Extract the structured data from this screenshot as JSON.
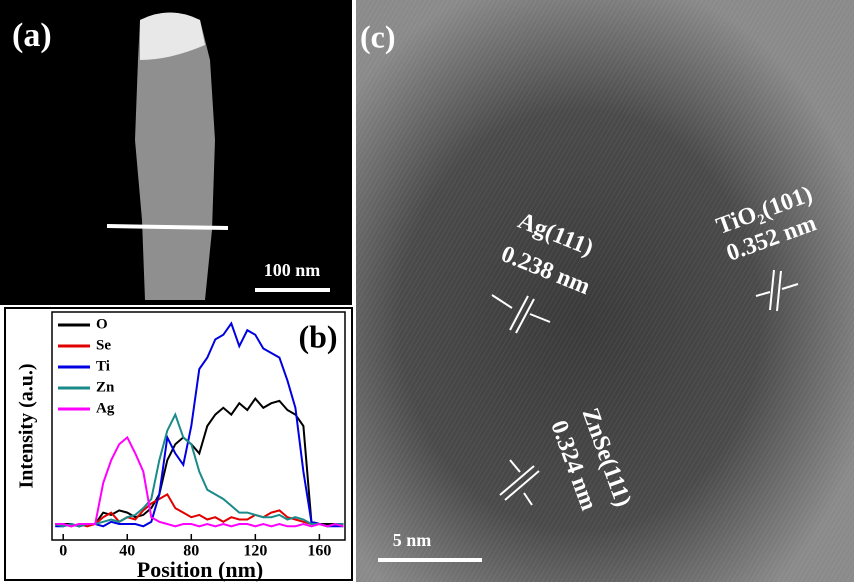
{
  "panel_a": {
    "label": "(a)",
    "scale_bar": "100 nm"
  },
  "chart_data": {
    "type": "line",
    "panel_label": "(b)",
    "x_label": "Position (nm)",
    "y_label": "Intensity (a.u.)",
    "x": [
      -5,
      0,
      5,
      10,
      15,
      20,
      25,
      30,
      35,
      40,
      45,
      50,
      55,
      60,
      65,
      70,
      75,
      80,
      85,
      90,
      95,
      100,
      105,
      110,
      115,
      120,
      125,
      130,
      135,
      140,
      145,
      150,
      155,
      160,
      165,
      170,
      175
    ],
    "series": [
      {
        "name": "O",
        "color": "#000000",
        "values": [
          7,
          7,
          7,
          6,
          7,
          7,
          12,
          11,
          13,
          12,
          10,
          11,
          14,
          20,
          35,
          42,
          45,
          42,
          38,
          50,
          55,
          58,
          55,
          60,
          57,
          62,
          58,
          60,
          61,
          57,
          55,
          50,
          8,
          7,
          7,
          7,
          7
        ]
      },
      {
        "name": "Se",
        "color": "#e00000",
        "values": [
          7,
          7,
          6,
          7,
          6,
          7,
          10,
          12,
          8,
          10,
          9,
          13,
          16,
          18,
          20,
          14,
          12,
          10,
          11,
          9,
          10,
          8,
          10,
          9,
          9,
          11,
          10,
          12,
          13,
          10,
          9,
          8,
          7,
          7,
          6,
          7,
          7
        ]
      },
      {
        "name": "Ti",
        "color": "#0000e0",
        "values": [
          6,
          6,
          7,
          6,
          7,
          7,
          6,
          8,
          7,
          7,
          7,
          6,
          8,
          20,
          45,
          38,
          33,
          50,
          75,
          80,
          88,
          90,
          95,
          85,
          92,
          90,
          84,
          82,
          80,
          70,
          58,
          30,
          8,
          7,
          6,
          6,
          6
        ]
      },
      {
        "name": "Zn",
        "color": "#1a8a8a",
        "values": [
          7,
          6,
          7,
          6,
          7,
          7,
          8,
          9,
          8,
          10,
          11,
          14,
          18,
          35,
          48,
          55,
          45,
          42,
          30,
          22,
          20,
          18,
          15,
          12,
          12,
          11,
          10,
          10,
          11,
          9,
          10,
          9,
          7,
          7,
          6,
          7,
          7
        ]
      },
      {
        "name": "Ag",
        "color": "#ff00ff",
        "values": [
          7,
          7,
          6,
          7,
          7,
          7,
          25,
          35,
          42,
          45,
          38,
          30,
          10,
          8,
          7,
          6,
          7,
          7,
          6,
          7,
          6,
          7,
          6,
          7,
          7,
          6,
          7,
          6,
          7,
          6,
          6,
          7,
          6,
          7,
          6,
          7,
          6
        ]
      }
    ],
    "xlim": [
      -7,
      176
    ],
    "xticks": [
      0,
      40,
      80,
      120,
      160
    ],
    "ylim": [
      0,
      100
    ]
  },
  "panel_c": {
    "label": "(c)",
    "ag_plane": "Ag(111)",
    "ag_spacing": "0.238 nm",
    "tio2_plane": "TiO₂(101)",
    "tio2_spacing": "0.352 nm",
    "znse_plane": "ZnSe(111)",
    "znse_spacing": "0.324 nm",
    "scale_bar": "5 nm"
  }
}
